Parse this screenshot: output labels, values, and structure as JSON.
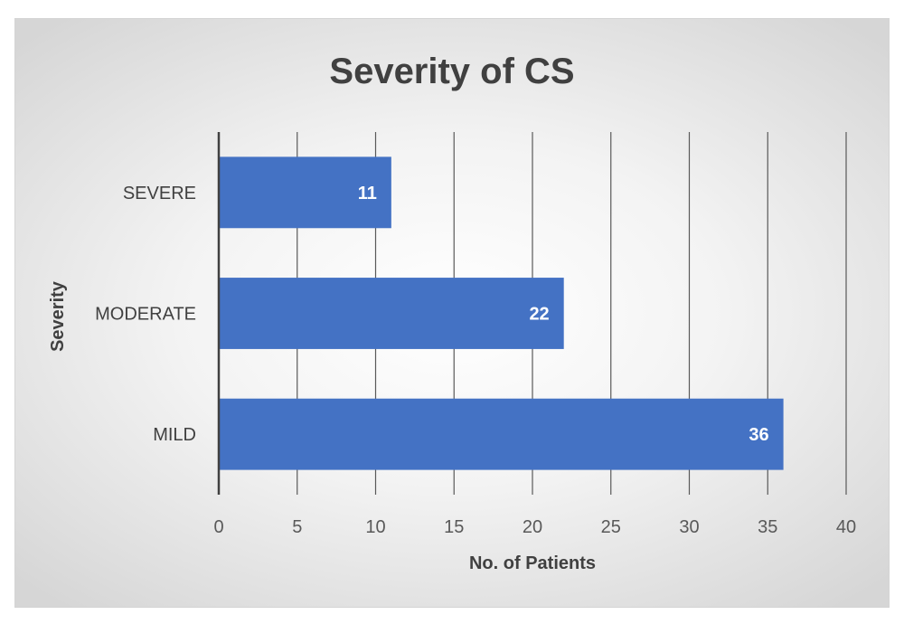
{
  "chart_data": {
    "type": "bar",
    "orientation": "horizontal",
    "title": "Severity of CS",
    "xlabel": "No. of Patients",
    "ylabel": "Severity",
    "categories": [
      "SEVERE",
      "MODERATE",
      "MILD"
    ],
    "values": [
      11,
      22,
      36
    ],
    "xlim": [
      0,
      40
    ],
    "x_ticks": [
      0,
      5,
      10,
      15,
      20,
      25,
      30,
      35,
      40
    ],
    "grid": "vertical",
    "legend": "none",
    "bar_color": "#4472C4",
    "data_labels": "inside-end"
  }
}
